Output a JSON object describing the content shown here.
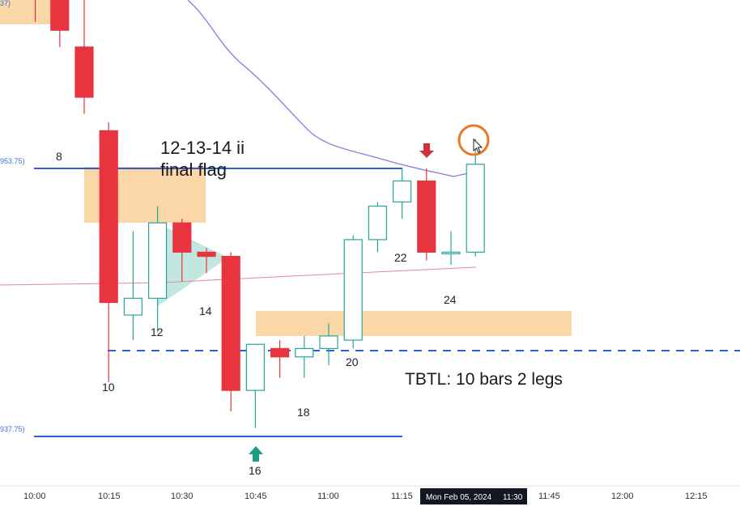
{
  "chart_data": {
    "type": "candlestick",
    "date_label": "Mon Feb 05, 2024",
    "time_axis": [
      "10:00",
      "10:15",
      "10:30",
      "10:45",
      "11:00",
      "11:15",
      "11:30",
      "11:45",
      "12:00",
      "12:15"
    ],
    "highlighted_time": "11:30",
    "price_tags": [
      "953.75)",
      "937.75)",
      "37)"
    ],
    "annotations": {
      "pattern_line1": "12-13-14 ii",
      "pattern_line2": "final flag",
      "tbtl": "TBTL: 10 bars 2 legs"
    },
    "bar_numbers": [
      "8",
      "10",
      "12",
      "14",
      "16",
      "18",
      "20",
      "22",
      "24"
    ],
    "colors": {
      "bull": "#ffffff",
      "bull_border": "#26a69a",
      "bear": "#e8343f",
      "ma": "#7b7fe0",
      "level": "#2c5fd0",
      "zone": "#fbd7a8",
      "triangle": "#b6e3da",
      "arrow_up": "#1e9e80",
      "arrow_down": "#d2313c",
      "circle": "#e8782a"
    },
    "candles": [
      {
        "bar": 6,
        "dir": "bear",
        "open": 5972,
        "close": 5964,
        "high": 5973,
        "low": 5962.5
      },
      {
        "bar": 7,
        "dir": "bear",
        "open": 5964,
        "close": 5962,
        "high": 5965.5,
        "low": 5961
      },
      {
        "bar": 8,
        "dir": "bear",
        "open": 5961,
        "close": 5958,
        "high": 5965,
        "low": 5957
      },
      {
        "bar": 9,
        "dir": "bear",
        "open": 5956,
        "close": 5945.75,
        "high": 5956.5,
        "low": 5941
      },
      {
        "bar": 10,
        "dir": "bull",
        "open": 5945,
        "close": 5946,
        "high": 5950,
        "low": 5943.5
      },
      {
        "bar": 11,
        "dir": "bull",
        "open": 5946,
        "close": 5950.5,
        "high": 5951.5,
        "low": 5944
      },
      {
        "bar": 12,
        "dir": "bear",
        "open": 5950.5,
        "close": 5948.75,
        "high": 5950.75,
        "low": 5947
      },
      {
        "bar": 13,
        "dir": "bear",
        "open": 5948.75,
        "close": 5948.5,
        "high": 5949,
        "low": 5947.5
      },
      {
        "bar": 14,
        "dir": "bear",
        "open": 5948.5,
        "close": 5940.5,
        "high": 5948.75,
        "low": 5939.25
      },
      {
        "bar": 15,
        "dir": "bull",
        "open": 5940.5,
        "close": 5943.25,
        "high": 5943.25,
        "low": 5938.25
      },
      {
        "bar": 16,
        "dir": "bear",
        "open": 5943,
        "close": 5942.5,
        "high": 5943.5,
        "low": 5941.25
      },
      {
        "bar": 17,
        "dir": "bull",
        "open": 5942.5,
        "close": 5943,
        "high": 5943.75,
        "low": 5941.25
      },
      {
        "bar": 18,
        "dir": "bull",
        "open": 5943,
        "close": 5943.75,
        "high": 5944.5,
        "low": 5942
      },
      {
        "bar": 19,
        "dir": "bull",
        "open": 5943.5,
        "close": 5949.5,
        "high": 5949.75,
        "low": 5943
      },
      {
        "bar": 20,
        "dir": "bull",
        "open": 5949.5,
        "close": 5951.5,
        "high": 5951.75,
        "low": 5948.75
      },
      {
        "bar": 21,
        "dir": "bull",
        "open": 5951.75,
        "close": 5953,
        "high": 5953.75,
        "low": 5950.75
      },
      {
        "bar": 22,
        "dir": "bear",
        "open": 5953,
        "close": 5948.75,
        "high": 5953.75,
        "low": 5948.25
      },
      {
        "bar": 23,
        "dir": "bull",
        "open": 5948.75,
        "close": 5948.75,
        "high": 5950,
        "low": 5948
      },
      {
        "bar": 24,
        "dir": "bull",
        "open": 5948.75,
        "close": 5954,
        "high": 5955.5,
        "low": 5948.5
      }
    ],
    "levels": {
      "upper": 5953.75,
      "lower": 5937.75,
      "dashed": 5942.25
    },
    "ylim": [
      5934.5,
      5977
    ]
  }
}
